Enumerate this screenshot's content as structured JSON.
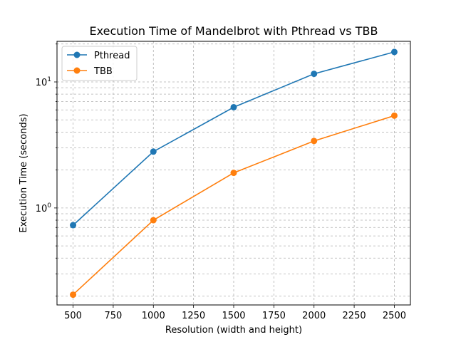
{
  "chart_data": {
    "type": "line",
    "title": "Execution Time of Mandelbrot with Pthread vs TBB",
    "xlabel": "Resolution (width and height)",
    "ylabel": "Execution Time (seconds)",
    "x": [
      500,
      1000,
      1500,
      2000,
      2500
    ],
    "xlim": [
      400,
      2600
    ],
    "xticks": [
      500,
      750,
      1000,
      1250,
      1500,
      1750,
      2000,
      2250,
      2500
    ],
    "xtick_labels": [
      "500",
      "750",
      "1000",
      "1250",
      "1500",
      "1750",
      "2000",
      "2250",
      "2500"
    ],
    "yscale": "log",
    "ylim": [
      0.17,
      21
    ],
    "ytick_labels": [
      {
        "base": "10",
        "exp": "0",
        "value": 1
      },
      {
        "base": "10",
        "exp": "1",
        "value": 10
      }
    ],
    "grid": true,
    "legend_position": "upper-left",
    "series": [
      {
        "name": "Pthread",
        "color": "#1f77b4",
        "values": [
          0.73,
          2.8,
          6.3,
          11.6,
          17.3
        ]
      },
      {
        "name": "TBB",
        "color": "#ff7f0e",
        "values": [
          0.205,
          0.8,
          1.9,
          3.4,
          5.4
        ]
      }
    ]
  }
}
